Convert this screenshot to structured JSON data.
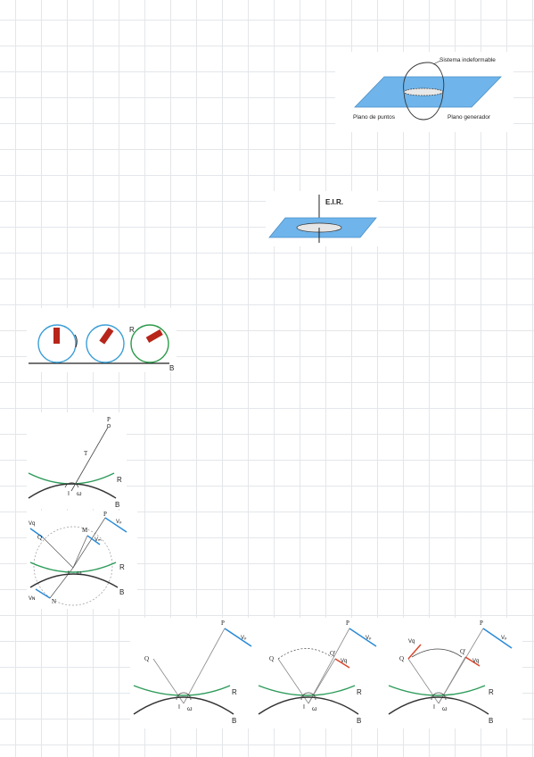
{
  "figure1": {
    "label_system": "Sistema indeformable",
    "label_plane_points": "Plano de puntos",
    "label_plane_base": "Plano generador"
  },
  "figure2": {
    "label": "E.I.R."
  },
  "figure3": {
    "label_R": "R",
    "label_B": "B"
  },
  "figure4": {
    "label_P": "P",
    "label_T": "T",
    "label_R": "R",
    "label_B": "B",
    "label_I": "I",
    "label_omega": "ω"
  },
  "figure5": {
    "label_P": "P",
    "label_Vp": "Vₚ",
    "label_M": "M",
    "label_VM": "Vₘ",
    "label_Q": "Q",
    "label_VQ": "Vq",
    "label_N": "N",
    "label_VN": "Vɴ",
    "label_R": "R",
    "label_B": "B",
    "label_I": "I",
    "label_omega": "ω"
  },
  "figure6": {
    "panels": [
      {
        "P": "P",
        "Vp": "Vₚ",
        "Q": "Q",
        "R": "R",
        "B": "B",
        "I": "I",
        "omega": "ω"
      },
      {
        "P": "P",
        "Vp": "Vₚ",
        "Q": "Q",
        "Qprime": "Q'",
        "VQ": "Vq",
        "R": "R",
        "B": "B",
        "I": "I",
        "omega": "ω"
      },
      {
        "P": "P",
        "Vp": "Vₚ",
        "Q": "Q",
        "Qprime": "Q'",
        "VQ": "Vq",
        "VQ2": "Vq",
        "R": "R",
        "B": "B",
        "I": "I",
        "omega": "ω"
      }
    ]
  },
  "colors": {
    "plane_blue": "#6fb4ea",
    "rolling_green": "#2e9b5a",
    "base_dark": "#333333",
    "velocity_blue": "#2a8ad6",
    "velocity_red": "#d9472b",
    "wheel_blue": "#3c9fd6",
    "wheel_green": "#2c9b4a",
    "pen_red": "#b8251a"
  }
}
